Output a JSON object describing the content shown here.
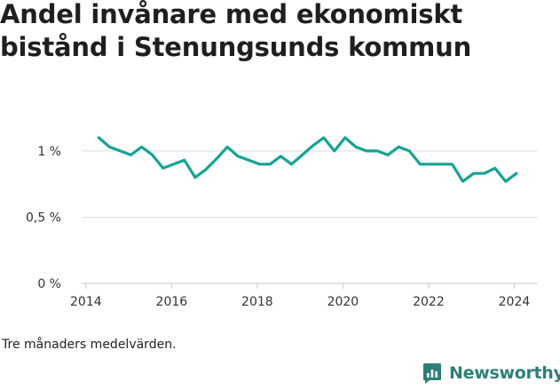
{
  "title": "Andel invånare med ekonomiskt bistånd i Stenungsunds kommun",
  "caption": "Tre månaders medelvärden.",
  "brand": {
    "name": "Newsworthy",
    "color": "#2d7f78",
    "icon": "bar-chart-logo-icon"
  },
  "chart_data": {
    "type": "line",
    "color": "#16a394",
    "xlim": [
      2013.9,
      2024.55
    ],
    "ylim": [
      0,
      1.12
    ],
    "xticks": [
      2014,
      2016,
      2018,
      2020,
      2022,
      2024
    ],
    "xtick_labels": [
      "2014",
      "2016",
      "2018",
      "2020",
      "2022",
      "2024"
    ],
    "yticks": [
      0,
      0.5,
      1
    ],
    "ytick_labels": [
      "0 %",
      "0,5 %",
      "1 %"
    ],
    "grid": "horizontal",
    "series": [
      {
        "x": [
          2014.3,
          2014.55,
          2014.8,
          2015.05,
          2015.3,
          2015.55,
          2015.8,
          2016.05,
          2016.3,
          2016.55,
          2016.8,
          2017.05,
          2017.3,
          2017.55,
          2017.8,
          2018.05,
          2018.3,
          2018.55,
          2018.8,
          2019.05,
          2019.3,
          2019.55,
          2019.8,
          2020.05,
          2020.3,
          2020.55,
          2020.8,
          2021.05,
          2021.3,
          2021.55,
          2021.8,
          2022.05,
          2022.3,
          2022.55,
          2022.8,
          2023.05,
          2023.3,
          2023.55,
          2023.8,
          2024.05
        ],
        "values": [
          1.1,
          1.03,
          1.0,
          0.97,
          1.03,
          0.97,
          0.87,
          0.9,
          0.93,
          0.8,
          0.86,
          0.94,
          1.03,
          0.96,
          0.93,
          0.9,
          0.9,
          0.96,
          0.9,
          0.97,
          1.04,
          1.1,
          1.0,
          1.1,
          1.03,
          1.0,
          1.0,
          0.97,
          1.03,
          1.0,
          0.9,
          0.9,
          0.9,
          0.9,
          0.77,
          0.83,
          0.83,
          0.87,
          0.77,
          0.83
        ]
      }
    ]
  }
}
